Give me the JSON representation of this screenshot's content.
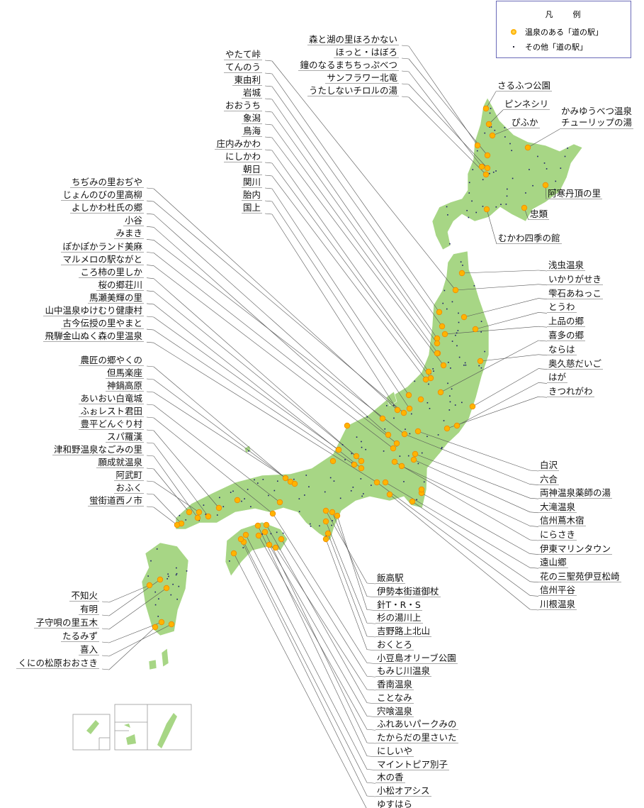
{
  "legend": {
    "title": "凡　　例",
    "items": [
      {
        "icon": "orange-dot",
        "label": "温泉のある「道の駅」"
      },
      {
        "icon": "small-navy-dot",
        "label": "その他「道の駅」"
      }
    ]
  },
  "colors": {
    "land": "#a7d685",
    "onsen_station": "#ffb400",
    "other_station": "#1a1a6a",
    "legend_border": "#6a6ab8"
  },
  "labels": {
    "hokkaido_top": [
      "森と湖の里ほろかない",
      "ほっと・はぼろ",
      "鐘のなるまちちっぷべつ",
      "サンフラワー北竜",
      "うたしないチロルの湯"
    ],
    "hokkaido_right": [
      "さるふつ公園",
      "ピンネシリ",
      "ぴふか",
      "かみゆうべつ温泉\nチューリップの湯",
      "阿寒丹頂の里",
      "忠類",
      "むかわ四季の館"
    ],
    "tohoku_left": [
      "やたて峠",
      "てんのう",
      "東由利",
      "岩城",
      "おおうち",
      "象潟",
      "鳥海",
      "庄内みかわ",
      "にしかわ",
      "朝日",
      "関川",
      "胎内",
      "国上"
    ],
    "chubu_left": [
      "ちぢみの里おぢや",
      "じょんのびの里高柳",
      "よしかわ杜氏の郷",
      "小谷",
      "みまき",
      "ぽかぽかランド美麻",
      "マルメロの駅ながと",
      "ころ柿の里しか",
      "桜の郷荘川",
      "馬瀬美輝の里",
      "山中温泉ゆけむり健康村",
      "古今伝授の里やまと",
      "飛騨金山ぬく森の里温泉"
    ],
    "west_left": [
      "農匠の郷やくの",
      "但馬楽座",
      "神鍋高原",
      "あいおい白竜城",
      "ふぉレスト君田",
      "豊平どんぐり村",
      "スパ羅漢",
      "津和野温泉なごみの里",
      "願成就温泉",
      "阿武町",
      "おふく",
      "蛍街道西ノ市"
    ],
    "tohoku_right": [
      "浅虫温泉",
      "いかりがせき",
      "雫石あねっこ",
      "とうわ",
      "上品の郷",
      "喜多の郷",
      "ならは",
      "奥久慈だいご",
      "はが",
      "きつれがわ"
    ],
    "kanto_right": [
      "白沢",
      "六合",
      "両神温泉薬師の湯",
      "大滝温泉",
      "信州蔦木宿",
      "にらさき",
      "伊東マリンタウン",
      "遠山郷",
      "花の三聖苑伊豆松崎",
      "信州平谷",
      "川根温泉"
    ],
    "southwest_bottom": [
      "飯高駅",
      "伊勢本街道御杖",
      "針T・R・S",
      "杉の湯川上",
      "吉野路上北山",
      "おくとろ",
      "小豆島オリーブ公園",
      "もみじ川温泉",
      "香南温泉",
      "ことなみ",
      "宍喰温泉",
      "ふれあいパークみの",
      "たからだの里さいた",
      "にしいや",
      "マイントピア別子",
      "木の香",
      "小松オアシス",
      "ゆすはら"
    ],
    "kyushu_left": [
      "不知火",
      "有明",
      "子守唄の里五木",
      "たるみず",
      "喜入",
      "くにの松原おおさき"
    ]
  }
}
